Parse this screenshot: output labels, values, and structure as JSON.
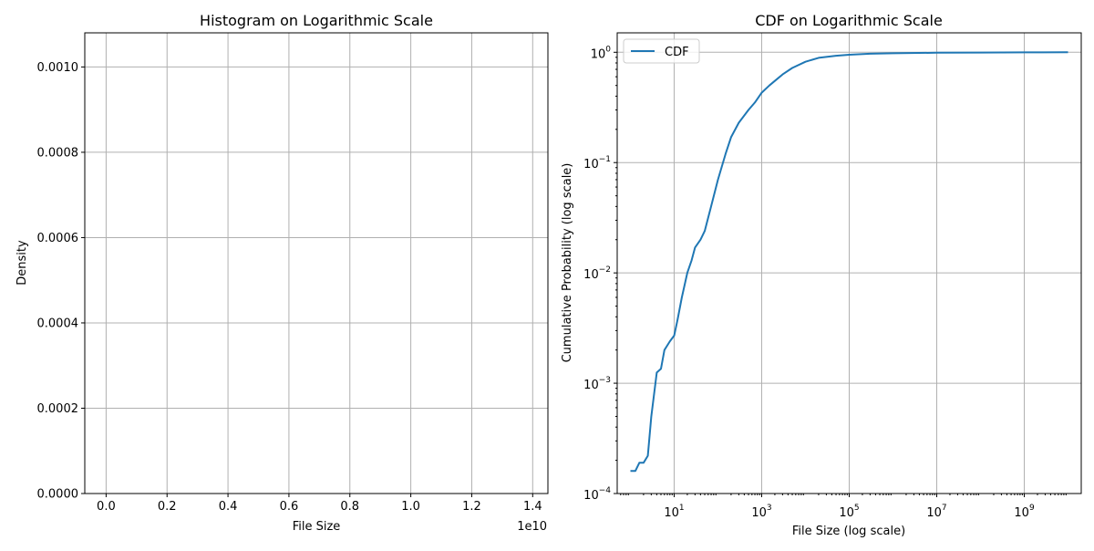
{
  "chart_data": [
    {
      "type": "histogram",
      "title": "Histogram on Logarithmic Scale",
      "xlabel": "File Size",
      "ylabel": "Density",
      "x_offset_label": "1e10",
      "xlim": [
        -0.07,
        1.45
      ],
      "ylim": [
        0,
        0.00108
      ],
      "x_ticks": [
        0.0,
        0.2,
        0.4,
        0.6,
        0.8,
        1.0,
        1.2,
        1.4
      ],
      "x_tick_labels": [
        "0.0",
        "0.2",
        "0.4",
        "0.6",
        "0.8",
        "1.0",
        "1.2",
        "1.4"
      ],
      "y_ticks": [
        0.0,
        0.0002,
        0.0004,
        0.0006,
        0.0008,
        0.001
      ],
      "y_tick_labels": [
        "0.0000",
        "0.0002",
        "0.0004",
        "0.0006",
        "0.0008",
        "0.0010"
      ],
      "grid": true,
      "bars": []
    },
    {
      "type": "line",
      "title": "CDF on Logarithmic Scale",
      "xlabel": "File Size (log scale)",
      "ylabel": "Cumulative Probability (log scale)",
      "x_scale": "log",
      "y_scale": "log",
      "xlim": [
        0.5,
        20000000000
      ],
      "ylim": [
        0.0001,
        1.5
      ],
      "x_ticks": [
        10,
        1000,
        100000,
        10000000,
        1000000000
      ],
      "x_tick_labels": [
        {
          "base": "10",
          "exp": "1"
        },
        {
          "base": "10",
          "exp": "3"
        },
        {
          "base": "10",
          "exp": "5"
        },
        {
          "base": "10",
          "exp": "7"
        },
        {
          "base": "10",
          "exp": "9"
        }
      ],
      "y_ticks": [
        0.0001,
        0.001,
        0.01,
        0.1,
        1
      ],
      "y_tick_labels": [
        {
          "base": "10",
          "exp": "−4"
        },
        {
          "base": "10",
          "exp": "−3"
        },
        {
          "base": "10",
          "exp": "−2"
        },
        {
          "base": "10",
          "exp": "−1"
        },
        {
          "base": "10",
          "exp": "0"
        }
      ],
      "grid": true,
      "legend": "upper left",
      "series": [
        {
          "name": "CDF",
          "color": "#1f77b4",
          "x": [
            1,
            1.3,
            1.6,
            2,
            2.5,
            3,
            4,
            5,
            6,
            8,
            10,
            12,
            15,
            20,
            25,
            30,
            40,
            50,
            70,
            100,
            150,
            200,
            300,
            500,
            700,
            1000,
            1500,
            2000,
            3000,
            5000,
            10000,
            20000,
            50000,
            100000,
            300000,
            1000000,
            10000000,
            100000000,
            1000000000,
            10000000000
          ],
          "y": [
            0.00016,
            0.00016,
            0.00019,
            0.00019,
            0.00022,
            0.0005,
            0.00125,
            0.00135,
            0.002,
            0.0024,
            0.0027,
            0.0038,
            0.006,
            0.01,
            0.013,
            0.017,
            0.02,
            0.024,
            0.04,
            0.07,
            0.12,
            0.17,
            0.23,
            0.3,
            0.35,
            0.43,
            0.5,
            0.55,
            0.63,
            0.72,
            0.82,
            0.89,
            0.93,
            0.95,
            0.97,
            0.98,
            0.99,
            0.995,
            0.998,
            0.999
          ]
        }
      ]
    }
  ]
}
